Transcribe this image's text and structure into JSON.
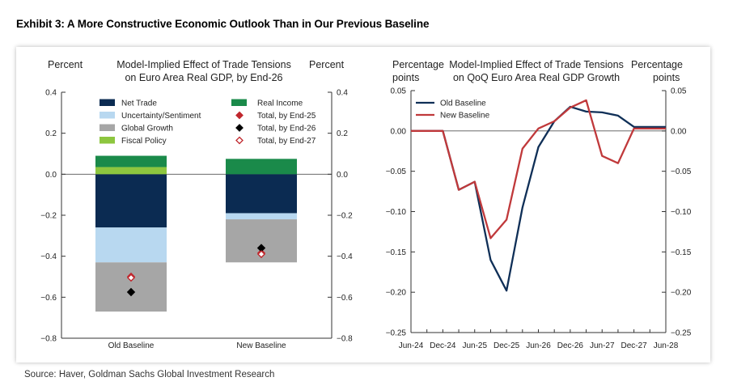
{
  "exhibit_title": "Exhibit 3: A More Constructive Economic Outlook Than in Our Previous Baseline",
  "source": "Source: Haver, Goldman Sachs Global Investment Research",
  "colors": {
    "net_trade": "#0b2b52",
    "uncertainty": "#b8d8f0",
    "global_growth": "#a6a6a6",
    "fiscal_policy": "#8dc63f",
    "real_income": "#1a8a4a",
    "marker_end25": "#c0272d",
    "marker_end26": "#000000",
    "marker_end27": "#c0272d",
    "old_baseline_line": "#0f2f57",
    "new_baseline_line": "#c0393b"
  },
  "chart_data": [
    {
      "type": "bar",
      "stacked": true,
      "title_lines": [
        "Model-Implied Effect of Trade Tensions",
        "on Euro Area Real GDP, by End-26"
      ],
      "left_unit": "Percent",
      "right_unit": "Percent",
      "ylim": [
        -0.8,
        0.4
      ],
      "yticks": [
        "0.4",
        "0.2",
        "0.0",
        "−0.2",
        "−0.4",
        "−0.6",
        "−0.8"
      ],
      "ytick_values": [
        0.4,
        0.2,
        0.0,
        -0.2,
        -0.4,
        -0.6,
        -0.8
      ],
      "categories": [
        "Old Baseline",
        "New Baseline"
      ],
      "series": [
        {
          "name": "Net Trade",
          "color_key": "net_trade",
          "values": [
            -0.26,
            -0.19
          ]
        },
        {
          "name": "Uncertainty/Sentiment",
          "color_key": "uncertainty",
          "values": [
            -0.17,
            -0.03
          ]
        },
        {
          "name": "Global Growth",
          "color_key": "global_growth",
          "values": [
            -0.24,
            -0.21
          ]
        },
        {
          "name": "Fiscal Policy",
          "color_key": "fiscal_policy",
          "values": [
            0.035,
            0.0
          ]
        },
        {
          "name": "Real Income",
          "color_key": "real_income",
          "values": [
            0.055,
            0.075
          ]
        }
      ],
      "markers": [
        {
          "name": "Total, by End-25",
          "shape": "diamond-filled",
          "color_key": "marker_end25",
          "values": [
            -0.5,
            -0.385
          ]
        },
        {
          "name": "Total, by End-26",
          "shape": "diamond-filled",
          "color_key": "marker_end26",
          "values": [
            -0.575,
            -0.36
          ]
        },
        {
          "name": "Total, by End-27",
          "shape": "diamond-open",
          "color_key": "marker_end27",
          "values": [
            -0.505,
            -0.39
          ]
        }
      ],
      "legend_left": [
        "Net Trade",
        "Uncertainty/Sentiment",
        "Global Growth",
        "Fiscal Policy"
      ],
      "legend_right": [
        "Real Income",
        "Total, by End-25",
        "Total, by End-26",
        "Total, by End-27"
      ],
      "grid": false
    },
    {
      "type": "line",
      "title_lines": [
        "Model-Implied Effect of Trade Tensions",
        "on QoQ Euro Area Real GDP Growth"
      ],
      "left_unit_lines": [
        "Percentage",
        "points"
      ],
      "right_unit_lines": [
        "Percentage",
        "points"
      ],
      "ylim": [
        -0.25,
        0.05
      ],
      "yticks": [
        "0.05",
        "0.00",
        "−0.05",
        "−0.10",
        "−0.15",
        "−0.20",
        "−0.25"
      ],
      "ytick_values": [
        0.05,
        0.0,
        -0.05,
        -0.1,
        -0.15,
        -0.2,
        -0.25
      ],
      "x_tick_labels": [
        "Jun-24",
        "Dec-24",
        "Jun-25",
        "Dec-25",
        "Jun-26",
        "Dec-26",
        "Jun-27",
        "Dec-27",
        "Jun-28"
      ],
      "x": [
        "Jun-24",
        "Sep-24",
        "Dec-24",
        "Mar-25",
        "Jun-25",
        "Sep-25",
        "Dec-25",
        "Mar-26",
        "Jun-26",
        "Sep-26",
        "Dec-26",
        "Mar-27",
        "Jun-27",
        "Sep-27",
        "Dec-27",
        "Mar-28",
        "Jun-28"
      ],
      "series": [
        {
          "name": "Old Baseline",
          "color_key": "old_baseline_line",
          "values": [
            0.0,
            0.0,
            0.0,
            -0.073,
            -0.063,
            -0.16,
            -0.198,
            -0.095,
            -0.02,
            0.012,
            0.03,
            0.024,
            0.023,
            0.019,
            0.005,
            0.005,
            0.005
          ]
        },
        {
          "name": "New Baseline",
          "color_key": "new_baseline_line",
          "values": [
            0.0,
            0.0,
            0.0,
            -0.073,
            -0.063,
            -0.133,
            -0.11,
            -0.022,
            0.003,
            0.012,
            0.029,
            0.038,
            -0.031,
            -0.04,
            0.003,
            0.003,
            0.003
          ]
        }
      ],
      "legend": [
        "Old Baseline",
        "New Baseline"
      ],
      "grid": false
    }
  ]
}
